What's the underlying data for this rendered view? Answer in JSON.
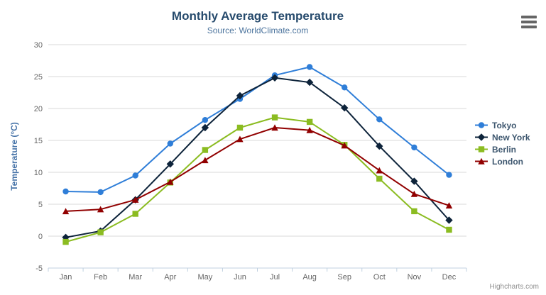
{
  "chart_data": {
    "type": "line",
    "title": "Monthly Average Temperature",
    "subtitle": "Source: WorldClimate.com",
    "xlabel": "",
    "ylabel": "Temperature (°C)",
    "categories": [
      "Jan",
      "Feb",
      "Mar",
      "Apr",
      "May",
      "Jun",
      "Jul",
      "Aug",
      "Sep",
      "Oct",
      "Nov",
      "Dec"
    ],
    "ylim": [
      -5,
      30
    ],
    "yticks": [
      -5,
      0,
      5,
      10,
      15,
      20,
      25,
      30
    ],
    "grid": true,
    "legend_position": "right",
    "series": [
      {
        "name": "Tokyo",
        "marker": "circle",
        "color": "#2f7ed8",
        "values": [
          7.0,
          6.9,
          9.5,
          14.5,
          18.2,
          21.5,
          25.2,
          26.5,
          23.3,
          18.3,
          13.9,
          9.6
        ]
      },
      {
        "name": "New York",
        "marker": "diamond",
        "color": "#0d233a",
        "values": [
          -0.2,
          0.8,
          5.7,
          11.3,
          17.0,
          22.0,
          24.8,
          24.1,
          20.1,
          14.1,
          8.6,
          2.5
        ]
      },
      {
        "name": "Berlin",
        "marker": "square",
        "color": "#8bbc21",
        "values": [
          -0.9,
          0.6,
          3.5,
          8.4,
          13.5,
          17.0,
          18.6,
          17.9,
          14.3,
          9.0,
          3.9,
          1.0
        ]
      },
      {
        "name": "London",
        "marker": "triangle",
        "color": "#910000",
        "values": [
          3.9,
          4.2,
          5.7,
          8.5,
          11.9,
          15.2,
          17.0,
          16.6,
          14.2,
          10.3,
          6.6,
          4.8
        ]
      }
    ],
    "colors": {
      "title": "#274b6d",
      "subtitle": "#4d759e",
      "grid": "#d8d8d8",
      "axis_line": "#c0d0e0",
      "tick_label": "#666666",
      "axis_title": "#4572a7",
      "legend_text": "#3e576f",
      "credits": "#909090",
      "export_icon": "#666666"
    },
    "credits": "Highcharts.com"
  }
}
